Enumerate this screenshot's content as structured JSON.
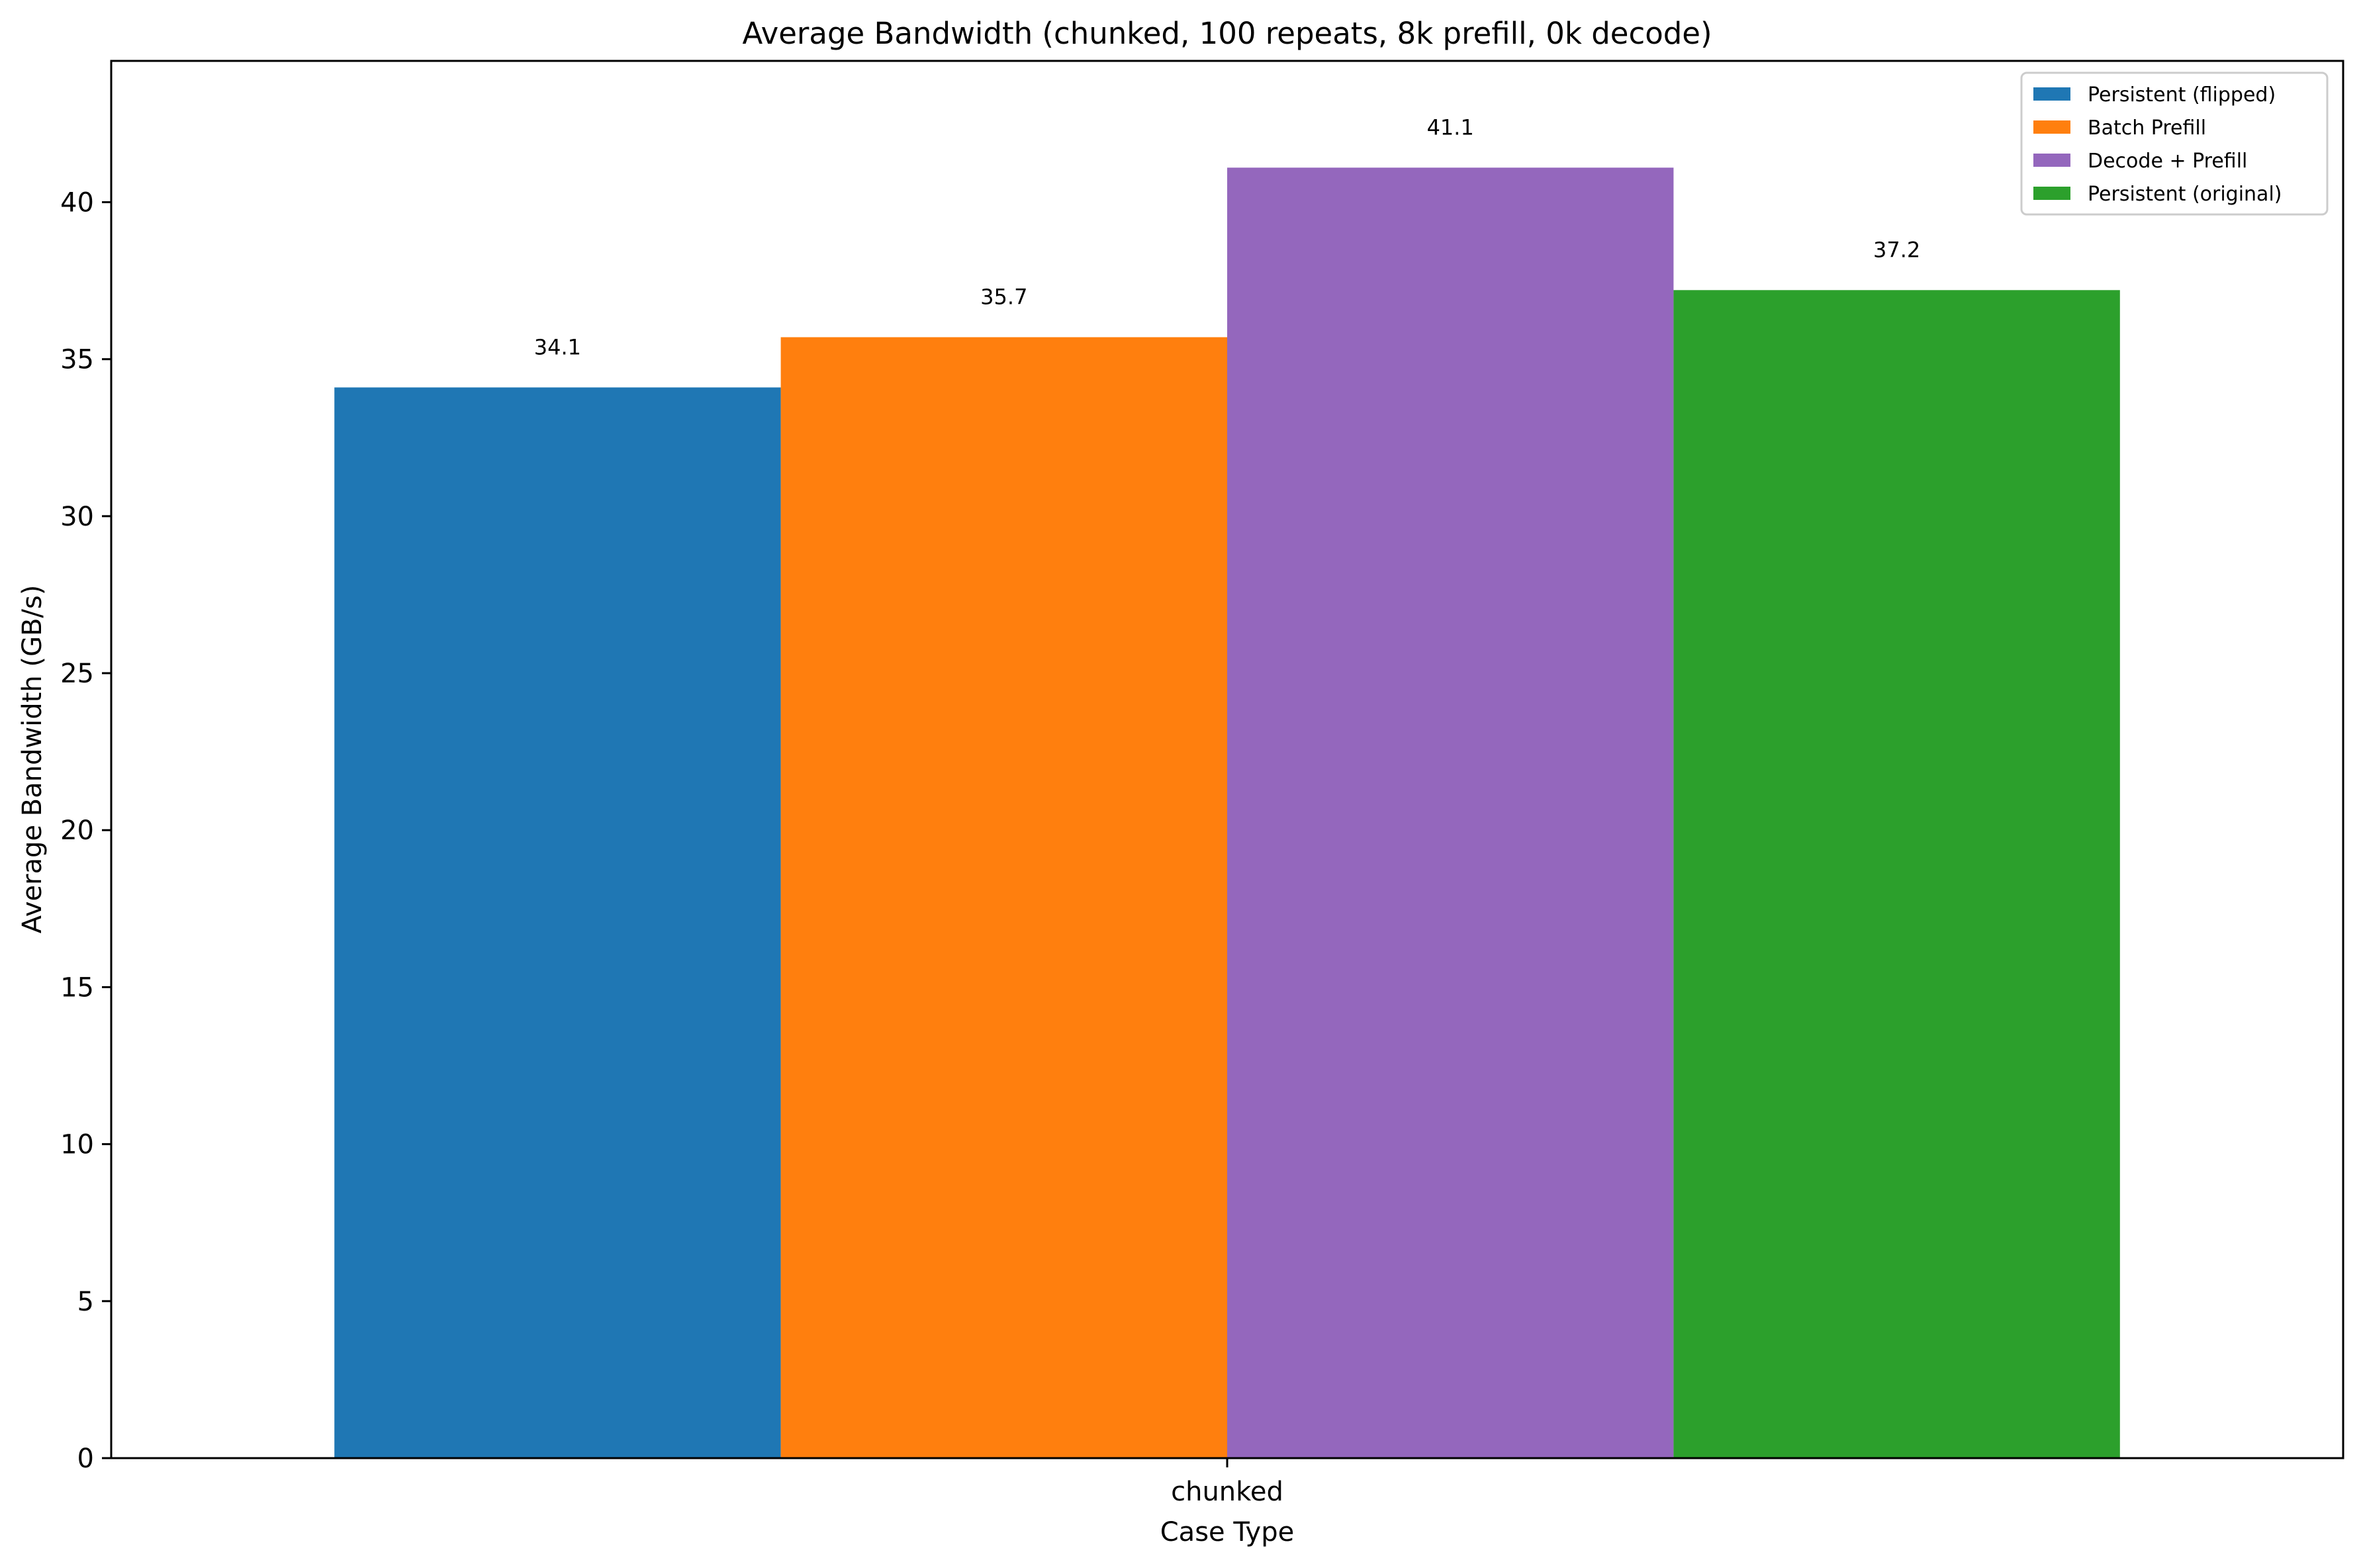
{
  "chart_data": {
    "type": "bar",
    "title": "Average Bandwidth (chunked, 100 repeats, 8k prefill, 0k decode)",
    "xlabel": "Case Type",
    "ylabel": "Average Bandwidth (GB/s)",
    "categories": [
      "chunked"
    ],
    "ylim": [
      0,
      44.5
    ],
    "yticks": [
      0,
      5,
      10,
      15,
      20,
      25,
      30,
      35,
      40
    ],
    "grid": false,
    "legend_position": "top-right",
    "series": [
      {
        "name": "Persistent (flipped)",
        "values": [
          34.1
        ],
        "labels": [
          "34.1"
        ],
        "color": "#1f77b4"
      },
      {
        "name": "Batch Prefill",
        "values": [
          35.7
        ],
        "labels": [
          "35.7"
        ],
        "color": "#ff7f0e"
      },
      {
        "name": "Decode + Prefill",
        "values": [
          41.1
        ],
        "labels": [
          "41.1"
        ],
        "color": "#9467bd"
      },
      {
        "name": "Persistent (original)",
        "values": [
          37.2
        ],
        "labels": [
          "37.2"
        ],
        "color": "#2ca02c"
      }
    ]
  }
}
